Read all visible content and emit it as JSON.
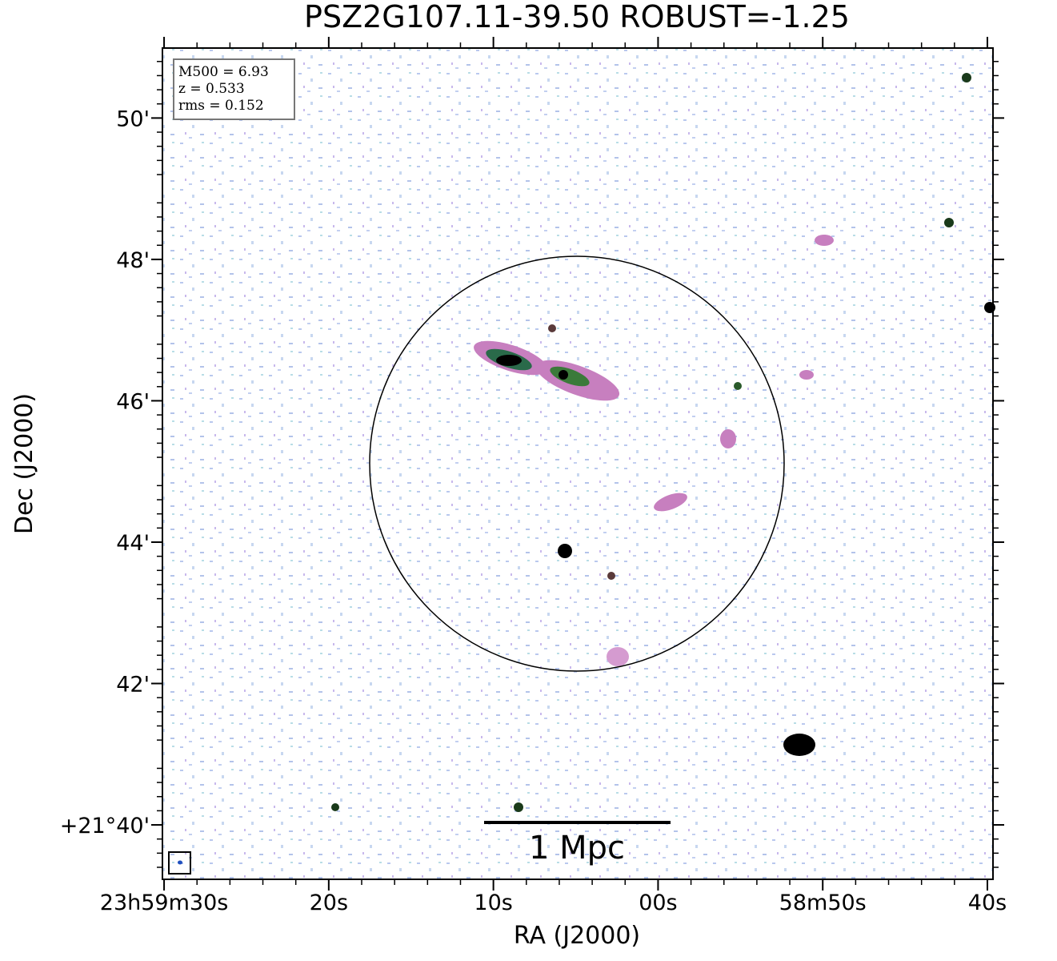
{
  "chart_data": {
    "type": "image",
    "title": "PSZ2G107.11-39.50 ROBUST=-1.25",
    "x_label": "RA (J2000)",
    "y_label": "Dec (J2000)",
    "info_lines": [
      "M500 = 6.93",
      "z = 0.533",
      "rms = 0.152"
    ],
    "scale_bar_label": "1 Mpc",
    "xlim": [
      90.1,
      39.66
    ],
    "xticks": [
      {
        "value": 90,
        "label": "23h59m30s"
      },
      {
        "value": 80,
        "label": "20s"
      },
      {
        "value": 70,
        "label": "10s"
      },
      {
        "value": 60,
        "label": "00s"
      },
      {
        "value": 50,
        "label": "58m50s"
      },
      {
        "value": 40,
        "label": "40s"
      }
    ],
    "ylim": [
      39.23,
      50.99
    ],
    "yticks": [
      {
        "value": 50,
        "label": "50'"
      },
      {
        "value": 48,
        "label": "48'"
      },
      {
        "value": 46,
        "label": "46'"
      },
      {
        "value": 44,
        "label": "44'"
      },
      {
        "value": 42,
        "label": "42'"
      },
      {
        "value": 40,
        "label": "+21°40'"
      }
    ]
  }
}
